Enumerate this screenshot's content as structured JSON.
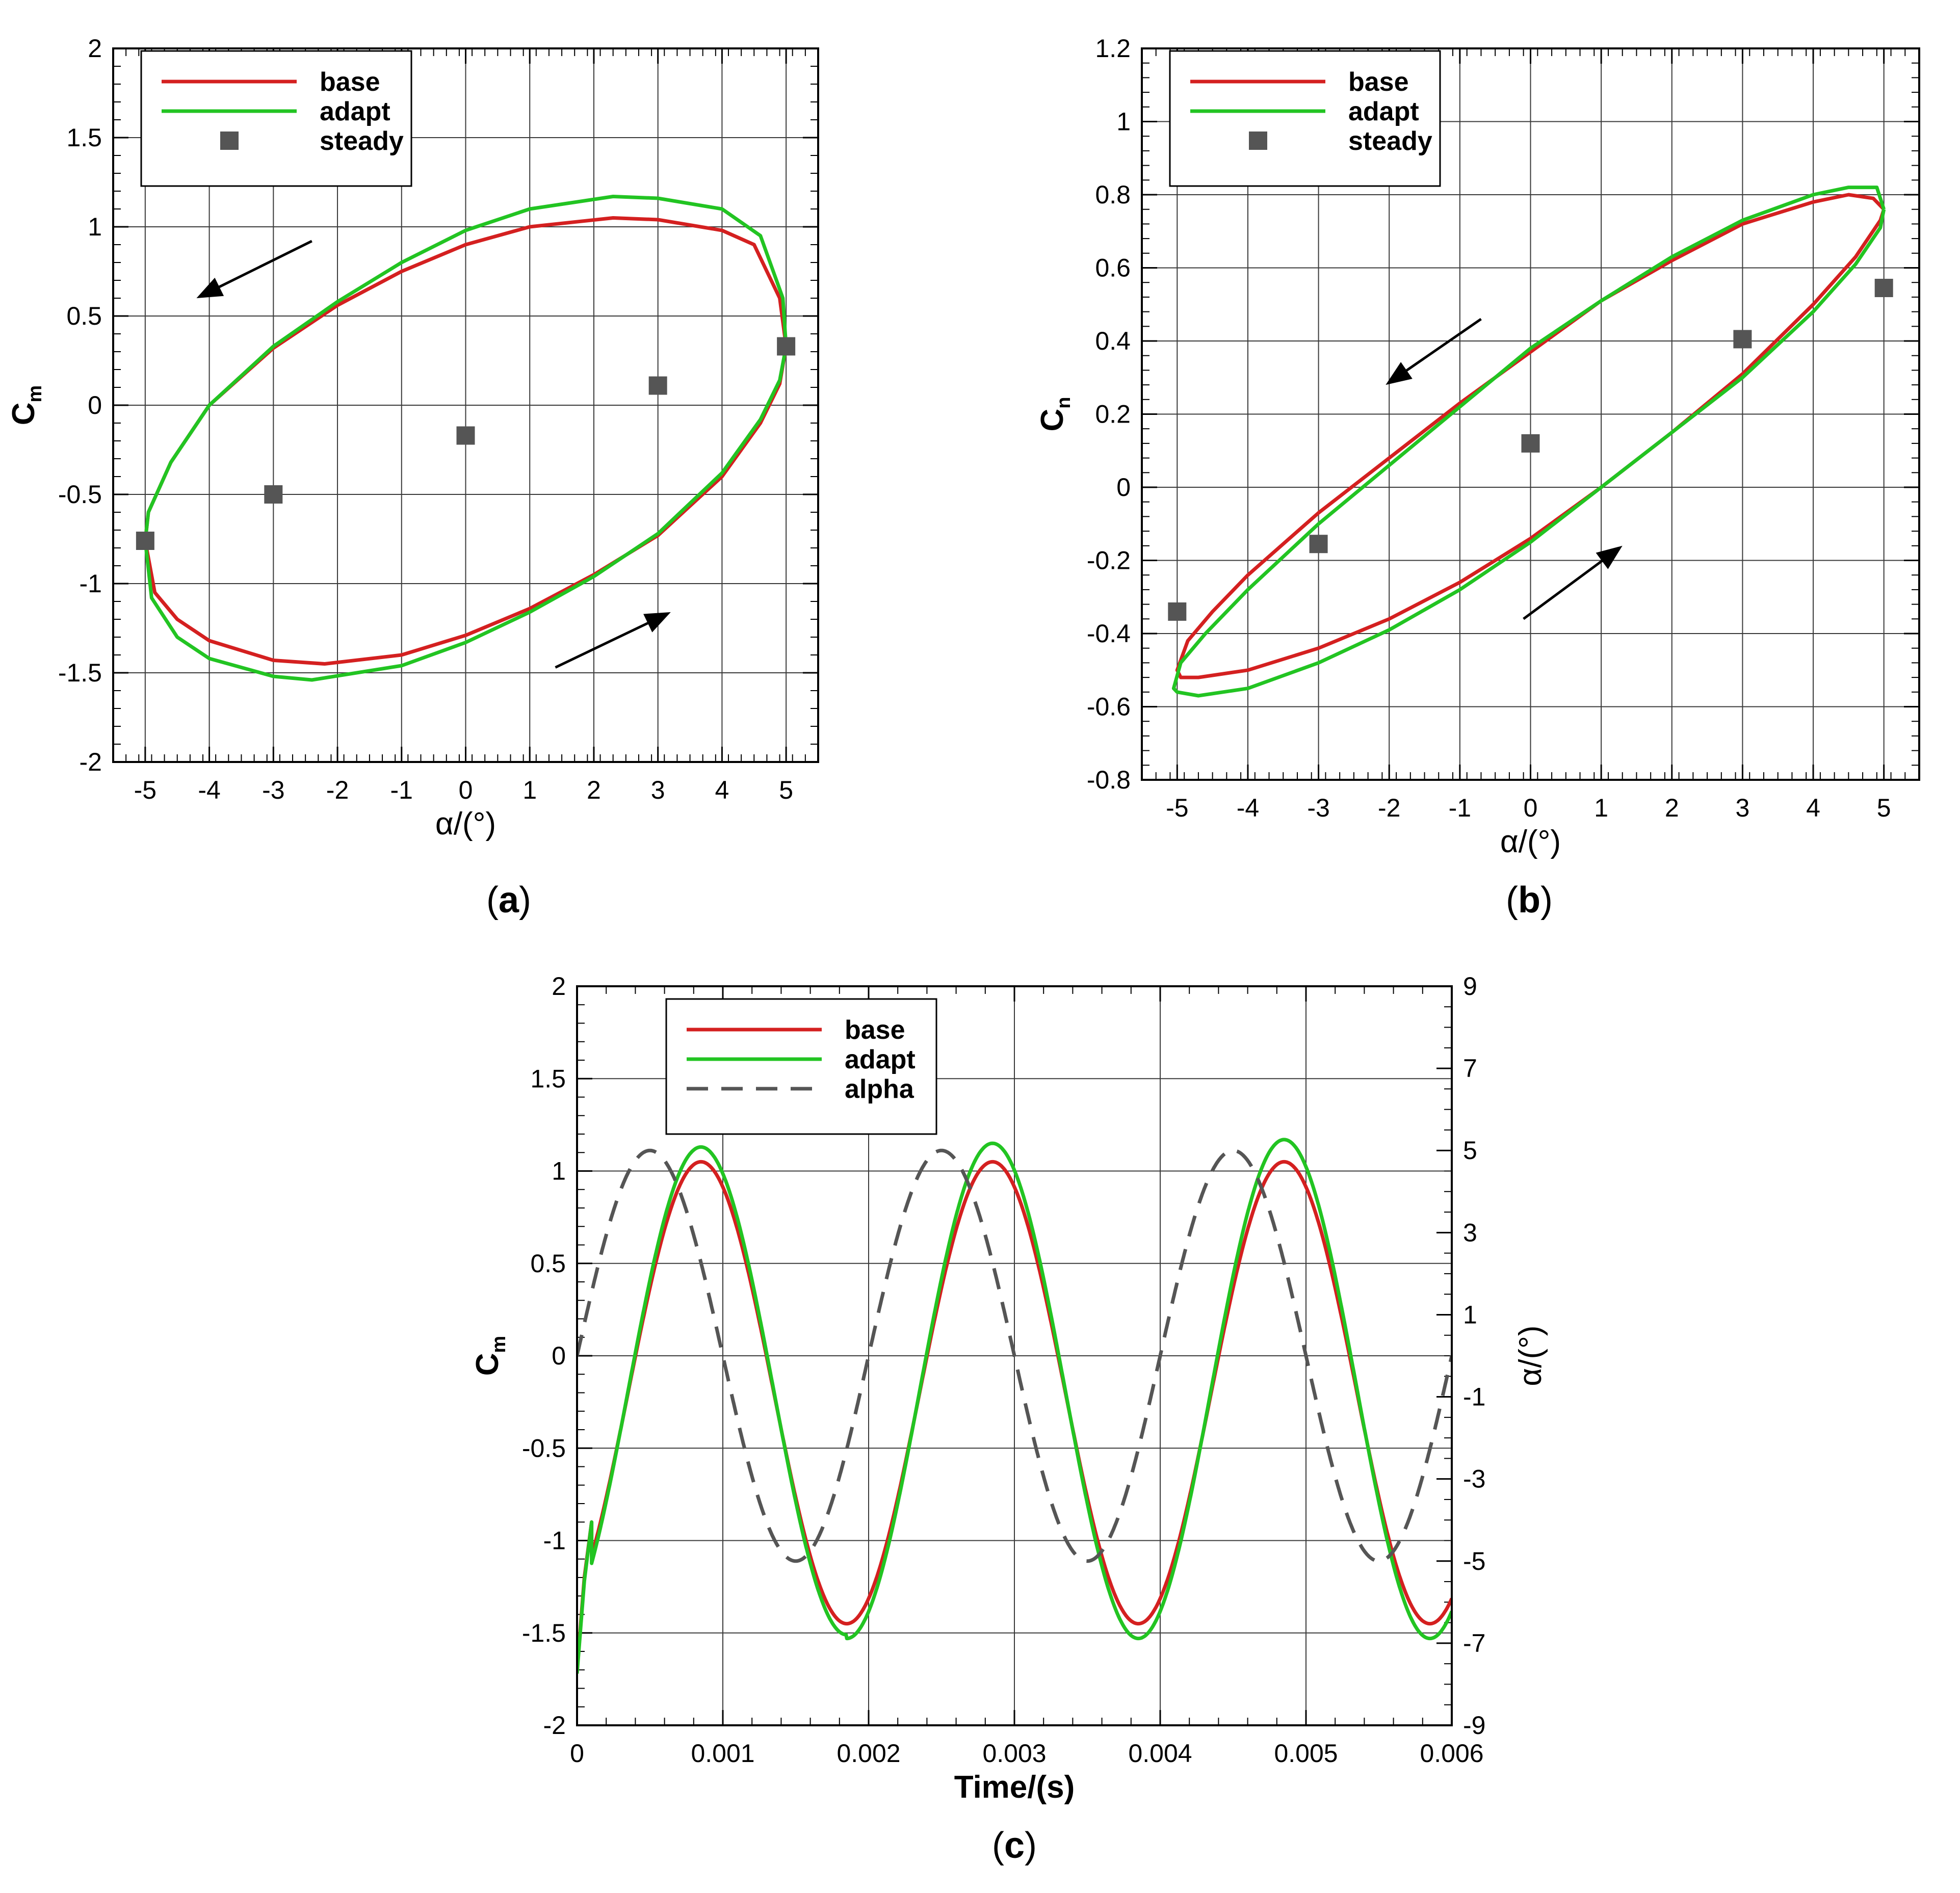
{
  "colors": {
    "base": "#d42020",
    "adapt": "#22c422",
    "steady": "#555555",
    "alpha": "#555555",
    "grid": "#3a3a3a",
    "frame": "#000000"
  },
  "chart_data": [
    {
      "id": "a",
      "type": "line",
      "panel_label": "(a)",
      "panel_letter": "a",
      "xlabel": "α/(°)",
      "ylabel": "C",
      "ylabel_sub": "m",
      "xlim": [
        -5.5,
        5.5
      ],
      "ylim": [
        -2,
        2
      ],
      "xticks": [
        "-5",
        "-4",
        "-3",
        "-2",
        "-1",
        "0",
        "1",
        "2",
        "3",
        "4",
        "5"
      ],
      "yticks": [
        "2",
        "1.5",
        "1",
        "0.5",
        "0",
        "-0.5",
        "-1",
        "-1.5",
        "-2"
      ],
      "grid": true,
      "legend_position": "top-left",
      "legend": [
        {
          "label": "base",
          "kind": "line",
          "color": "#d42020"
        },
        {
          "label": "adapt",
          "kind": "line",
          "color": "#22c422"
        },
        {
          "label": "steady",
          "kind": "square",
          "color": "#555555"
        }
      ],
      "series": [
        {
          "name": "base",
          "kind": "line",
          "x": [
            5.0,
            4.9,
            4.5,
            4.0,
            3.0,
            2.3,
            1.0,
            0.0,
            -1.0,
            -2.0,
            -3.0,
            -4.0,
            -4.6,
            -4.95,
            -5.0,
            -4.85,
            -4.5,
            -4.0,
            -3.0,
            -2.2,
            -1.0,
            0.0,
            1.0,
            2.0,
            3.0,
            4.0,
            4.6,
            4.9,
            5.0
          ],
          "y": [
            0.33,
            0.6,
            0.9,
            0.98,
            1.04,
            1.05,
            1.0,
            0.9,
            0.75,
            0.56,
            0.32,
            0.0,
            -0.32,
            -0.6,
            -0.76,
            -1.05,
            -1.2,
            -1.32,
            -1.43,
            -1.45,
            -1.4,
            -1.29,
            -1.14,
            -0.95,
            -0.73,
            -0.4,
            -0.1,
            0.12,
            0.33
          ]
        },
        {
          "name": "adapt",
          "kind": "line",
          "x": [
            5.0,
            4.95,
            4.6,
            4.0,
            3.0,
            2.3,
            1.0,
            0.0,
            -1.0,
            -2.0,
            -3.0,
            -4.0,
            -4.6,
            -4.95,
            -5.0,
            -4.9,
            -4.5,
            -4.0,
            -3.0,
            -2.4,
            -1.0,
            0.0,
            1.0,
            2.0,
            3.0,
            4.0,
            4.6,
            4.9,
            5.0
          ],
          "y": [
            0.33,
            0.6,
            0.95,
            1.1,
            1.16,
            1.17,
            1.1,
            0.98,
            0.8,
            0.58,
            0.33,
            0.0,
            -0.32,
            -0.6,
            -0.76,
            -1.08,
            -1.3,
            -1.42,
            -1.52,
            -1.54,
            -1.46,
            -1.33,
            -1.16,
            -0.96,
            -0.72,
            -0.38,
            -0.08,
            0.14,
            0.33
          ]
        },
        {
          "name": "steady",
          "kind": "marker",
          "x": [
            -5,
            -3,
            0,
            3,
            5
          ],
          "y": [
            -0.76,
            -0.5,
            -0.17,
            0.11,
            0.33
          ]
        }
      ],
      "annotations": [
        {
          "kind": "arrow",
          "from": [
            -2.4,
            0.92
          ],
          "to": [
            -4.2,
            0.6
          ]
        },
        {
          "kind": "arrow",
          "from": [
            1.4,
            -1.47
          ],
          "to": [
            3.2,
            -1.16
          ]
        }
      ]
    },
    {
      "id": "b",
      "type": "line",
      "panel_label": "(b)",
      "panel_letter": "b",
      "xlabel": "α/(°)",
      "ylabel": "C",
      "ylabel_sub": "n",
      "xlim": [
        -5.5,
        5.5
      ],
      "ylim": [
        -0.8,
        1.2
      ],
      "xticks": [
        "-5",
        "-4",
        "-3",
        "-2",
        "-1",
        "0",
        "1",
        "2",
        "3",
        "4",
        "5"
      ],
      "yticks": [
        "1.2",
        "1",
        "0.8",
        "0.6",
        "0.4",
        "0.2",
        "0",
        "-0.2",
        "-0.4",
        "-0.6",
        "-0.8"
      ],
      "grid": true,
      "legend_position": "top-left",
      "legend": [
        {
          "label": "base",
          "kind": "line",
          "color": "#d42020"
        },
        {
          "label": "adapt",
          "kind": "line",
          "color": "#22c422"
        },
        {
          "label": "steady",
          "kind": "square",
          "color": "#555555"
        }
      ],
      "series": [
        {
          "name": "base",
          "kind": "line",
          "x": [
            5.0,
            4.85,
            4.5,
            4.0,
            3.0,
            2.0,
            1.0,
            0.0,
            -1.0,
            -2.0,
            -3.0,
            -4.0,
            -4.5,
            -4.85,
            -5.0,
            -4.95,
            -4.7,
            -4.0,
            -3.0,
            -2.0,
            -1.0,
            0.0,
            1.0,
            2.0,
            3.0,
            4.0,
            4.6,
            4.95,
            5.0
          ],
          "y": [
            0.76,
            0.79,
            0.8,
            0.78,
            0.72,
            0.62,
            0.51,
            0.37,
            0.23,
            0.08,
            -0.07,
            -0.24,
            -0.34,
            -0.42,
            -0.5,
            -0.52,
            -0.52,
            -0.5,
            -0.44,
            -0.36,
            -0.26,
            -0.14,
            0.0,
            0.15,
            0.31,
            0.5,
            0.63,
            0.73,
            0.76
          ]
        },
        {
          "name": "adapt",
          "kind": "line",
          "x": [
            5.0,
            4.9,
            4.5,
            4.0,
            3.0,
            2.0,
            1.0,
            0.0,
            -1.0,
            -2.0,
            -3.0,
            -4.0,
            -4.6,
            -4.95,
            -5.05,
            -5.0,
            -4.7,
            -4.0,
            -3.0,
            -2.0,
            -1.0,
            0.0,
            1.0,
            2.0,
            3.0,
            4.0,
            4.6,
            4.95,
            5.0
          ],
          "y": [
            0.76,
            0.82,
            0.82,
            0.8,
            0.73,
            0.63,
            0.51,
            0.38,
            0.22,
            0.06,
            -0.1,
            -0.28,
            -0.4,
            -0.48,
            -0.55,
            -0.56,
            -0.57,
            -0.55,
            -0.48,
            -0.39,
            -0.28,
            -0.15,
            0.0,
            0.15,
            0.3,
            0.48,
            0.61,
            0.71,
            0.76
          ]
        },
        {
          "name": "steady",
          "kind": "marker",
          "x": [
            -5,
            -3,
            0,
            3,
            5
          ],
          "y": [
            -0.34,
            -0.155,
            0.12,
            0.405,
            0.545
          ]
        }
      ],
      "annotations": [
        {
          "kind": "arrow",
          "from": [
            -0.7,
            0.46
          ],
          "to": [
            -2.05,
            0.28
          ]
        },
        {
          "kind": "arrow",
          "from": [
            -0.1,
            -0.36
          ],
          "to": [
            1.3,
            -0.16
          ]
        }
      ]
    },
    {
      "id": "c",
      "type": "line",
      "panel_label": "(c)",
      "panel_letter": "c",
      "xlabel": "Time/(s)",
      "ylabel": "C",
      "ylabel_sub": "m",
      "y2label": "α/(°)",
      "xlim": [
        0,
        0.006
      ],
      "ylim": [
        -2,
        2
      ],
      "y2lim": [
        -9,
        9
      ],
      "xticks": [
        "0",
        "0.001",
        "0.002",
        "0.003",
        "0.004",
        "0.005",
        "0.006"
      ],
      "yticks": [
        "2",
        "1.5",
        "1",
        "0.5",
        "0",
        "-0.5",
        "-1",
        "-1.5",
        "-2"
      ],
      "y2ticks": [
        "9",
        "7",
        "5",
        "3",
        "1",
        "-1",
        "-3",
        "-5",
        "-7",
        "-9"
      ],
      "grid": true,
      "legend_position": "top-center",
      "legend": [
        {
          "label": "base",
          "kind": "line",
          "color": "#d42020"
        },
        {
          "label": "adapt",
          "kind": "line",
          "color": "#22c422"
        },
        {
          "label": "alpha",
          "kind": "dashed",
          "color": "#555555"
        }
      ],
      "series": [
        {
          "name": "base",
          "kind": "wave",
          "period": 0.002,
          "peak_time": 0.00085,
          "max": 1.05,
          "min": -1.45,
          "x_start": 0.0001,
          "x_end": 0.006,
          "transient": {
            "x": [
              0.0,
              5e-05,
              0.0001
            ],
            "y": [
              -1.7,
              -1.2,
              -0.9
            ]
          }
        },
        {
          "name": "adapt",
          "kind": "wave",
          "period": 0.002,
          "peak_time": 0.00085,
          "max": [
            1.13,
            1.15,
            1.17
          ],
          "min": [
            -1.51,
            -1.53,
            -1.53
          ],
          "x_start": 0.0001,
          "x_end": 0.006,
          "transient": {
            "x": [
              0.0,
              5e-05,
              0.0001
            ],
            "y": [
              -1.72,
              -1.22,
              -0.9
            ]
          }
        },
        {
          "name": "alpha",
          "kind": "sine",
          "axis": "y2",
          "period": 0.002,
          "amplitude": 5,
          "phase_zero_time": 0.0,
          "x_start": 0.0,
          "x_end": 0.006
        }
      ]
    }
  ]
}
